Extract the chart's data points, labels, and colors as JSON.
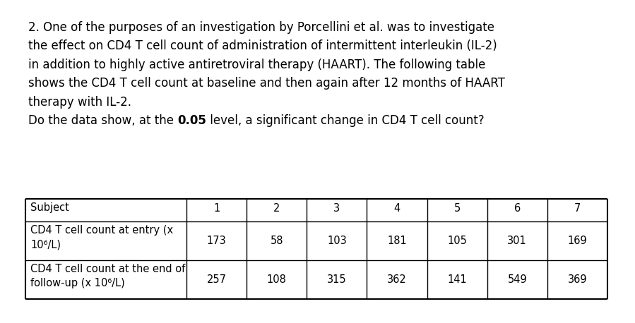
{
  "paragraph_lines": [
    "2. One of the purposes of an investigation by Porcellini et al. was to investigate",
    "the effect on CD4 T cell count of administration of intermittent interleukin (IL-2)",
    "in addition to highly active antiretroviral therapy (HAART). The following table",
    "shows the CD4 T cell count at baseline and then again after 12 months of HAART",
    "therapy with IL-2."
  ],
  "question_normal": "Do the data show, at the ",
  "question_bold": "0.05",
  "question_after": " level, a significant change in CD4 T cell count?",
  "col_headers": [
    "Subject",
    "1",
    "2",
    "3",
    "4",
    "5",
    "6",
    "7"
  ],
  "row1_label_lines": [
    "CD4 T cell count at entry (x",
    "10⁶/L)"
  ],
  "row1_values": [
    "173",
    "58",
    "103",
    "181",
    "105",
    "301",
    "169"
  ],
  "row2_label_lines": [
    "CD4 T cell count at the end of",
    "follow-up (x 10⁶/L)"
  ],
  "row2_values": [
    "257",
    "108",
    "315",
    "362",
    "141",
    "549",
    "369"
  ],
  "bg_color": "#ffffff",
  "text_color": "#000000",
  "font_name": "DejaVu Sans",
  "para_fontsize": 12.0,
  "table_fontsize": 10.5,
  "fig_width": 8.99,
  "fig_height": 4.58,
  "dpi": 100
}
